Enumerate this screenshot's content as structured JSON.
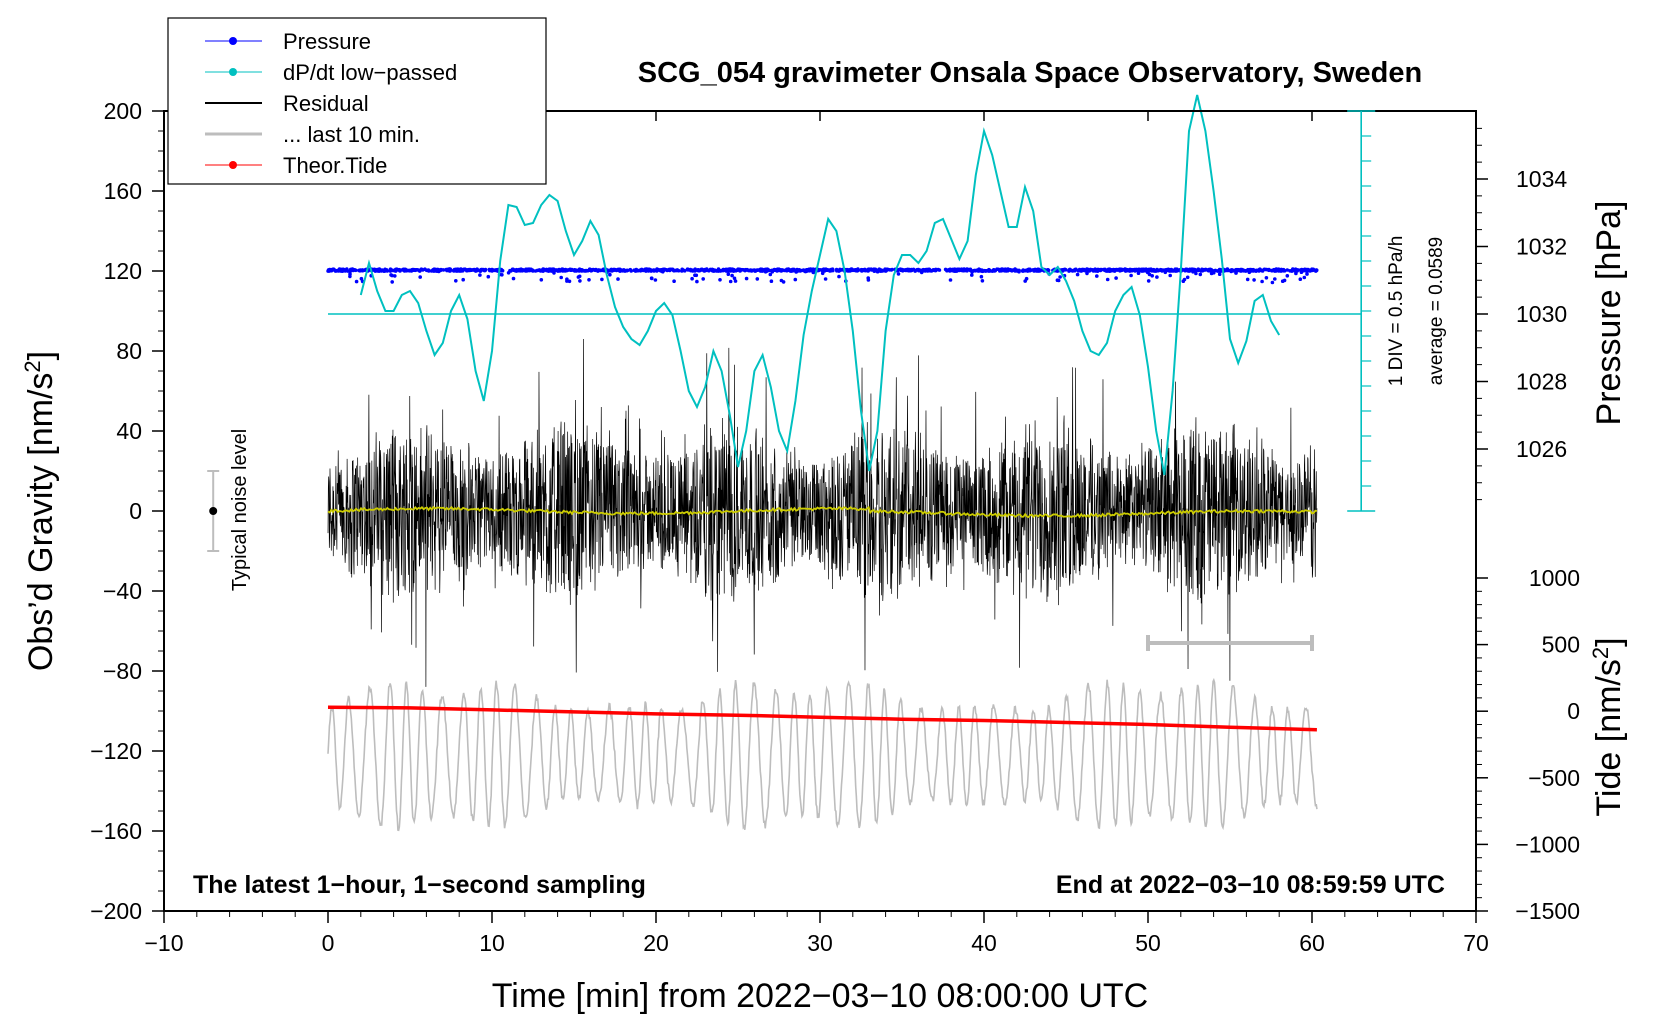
{
  "chart_data": {
    "type": "line",
    "title": "SCG_054 gravimeter Onsala Space Observatory, Sweden",
    "xlabel": "Time [min] from 2022−03−10 08:00:00 UTC",
    "ylabel": "Obs’d Gravity [nm/s",
    "ylabel_sup": "2",
    "ylabel_close": "]",
    "y2label_pressure": "Pressure [hPa]",
    "y2label_tide": "Tide [nm/s",
    "y2label_tide_sup": "2",
    "y2label_tide_close": "]",
    "xlim": [
      -10,
      70
    ],
    "ylim": [
      -200,
      200
    ],
    "pressure_lim": [
      1024,
      1036
    ],
    "tide_lim": [
      -1500,
      1500
    ],
    "x_ticks": [
      {
        "v": -10,
        "label": "−10"
      },
      {
        "v": 0,
        "label": "0"
      },
      {
        "v": 10,
        "label": "10"
      },
      {
        "v": 20,
        "label": "20"
      },
      {
        "v": 30,
        "label": "30"
      },
      {
        "v": 40,
        "label": "40"
      },
      {
        "v": 50,
        "label": "50"
      },
      {
        "v": 60,
        "label": "60"
      },
      {
        "v": 70,
        "label": "70"
      }
    ],
    "y_ticks": [
      {
        "v": 200,
        "label": "200"
      },
      {
        "v": 160,
        "label": "160"
      },
      {
        "v": 120,
        "label": "120"
      },
      {
        "v": 80,
        "label": "80"
      },
      {
        "v": 40,
        "label": "40"
      },
      {
        "v": 0,
        "label": "0"
      },
      {
        "v": -40,
        "label": "−40"
      },
      {
        "v": -80,
        "label": "−80"
      },
      {
        "v": -120,
        "label": "−120"
      },
      {
        "v": -160,
        "label": "−160"
      },
      {
        "v": -200,
        "label": "−200"
      }
    ],
    "pressure_ticks": [
      {
        "v": 1034,
        "label": "1034"
      },
      {
        "v": 1032,
        "label": "1032"
      },
      {
        "v": 1030,
        "label": "1030"
      },
      {
        "v": 1028,
        "label": "1028"
      },
      {
        "v": 1026,
        "label": "1026"
      }
    ],
    "tide_ticks": [
      {
        "v": 1000,
        "label": "1000"
      },
      {
        "v": 500,
        "label": "500"
      },
      {
        "v": 0,
        "label": "0"
      },
      {
        "v": -500,
        "label": "−500"
      },
      {
        "v": -1000,
        "label": "−1000"
      },
      {
        "v": -1500,
        "label": "−1500"
      }
    ],
    "series": [
      {
        "name": "Pressure",
        "color": "#0000ff",
        "axis": "pressure",
        "x_range": [
          0,
          60.3
        ],
        "mean_hPa": 1031.3,
        "note": "dense 1-second dots near 1031.3 hPa"
      },
      {
        "name": "dP/dt low−passed",
        "color": "#00c0c0",
        "axis": "dPdt",
        "baseline_hPa": 1030,
        "scale": "1 DIV = 0.5 hPa/h",
        "x": [
          2.0,
          2.5,
          3.0,
          3.5,
          4.0,
          4.5,
          5.0,
          5.5,
          6.0,
          6.5,
          7.0,
          7.5,
          8.0,
          8.5,
          9.0,
          9.5,
          10.0,
          10.5,
          11.0,
          11.5,
          12.0,
          12.5,
          13.0,
          13.5,
          14.0,
          14.5,
          15.0,
          15.5,
          16.0,
          16.5,
          17.0,
          17.5,
          18.0,
          18.5,
          19.0,
          19.5,
          20.0,
          20.5,
          21.0,
          21.5,
          22.0,
          22.5,
          23.0,
          23.5,
          24.0,
          24.5,
          25.0,
          25.5,
          26.0,
          26.5,
          27.0,
          27.5,
          28.0,
          28.5,
          29.0,
          29.5,
          30.0,
          30.5,
          31.0,
          31.5,
          32.0,
          32.5,
          33.0,
          33.5,
          34.0,
          34.5,
          35.0,
          35.5,
          36.0,
          36.5,
          37.0,
          37.5,
          38.0,
          38.5,
          39.0,
          39.5,
          40.0,
          40.5,
          41.0,
          41.5,
          42.0,
          42.5,
          43.0,
          43.5,
          44.0,
          44.5,
          45.0,
          45.5,
          46.0,
          46.5,
          47.0,
          47.5,
          48.0,
          48.5,
          49.0,
          49.5,
          50.0,
          50.5,
          51.0,
          51.5,
          52.0,
          52.5,
          53.0,
          53.5,
          54.0,
          54.5,
          55.0,
          55.5,
          56.0,
          56.5,
          57.0,
          57.5,
          58.0
        ],
        "y": [
          108,
          124,
          110,
          100,
          100,
          108,
          110,
          104,
          90,
          78,
          84,
          100,
          108,
          96,
          70,
          55,
          80,
          125,
          153,
          152,
          143,
          144,
          153,
          158,
          155,
          140,
          128,
          135,
          145,
          138,
          118,
          102,
          92,
          86,
          83,
          90,
          100,
          104,
          98,
          80,
          60,
          52,
          62,
          80,
          70,
          48,
          22,
          40,
          70,
          78,
          62,
          40,
          30,
          55,
          88,
          110,
          128,
          146,
          140,
          120,
          90,
          50,
          20,
          40,
          90,
          118,
          128,
          128,
          124,
          130,
          144,
          146,
          136,
          126,
          135,
          168,
          190,
          178,
          160,
          142,
          142,
          162,
          150,
          122,
          118,
          122,
          115,
          105,
          90,
          80,
          78,
          84,
          100,
          108,
          112,
          98,
          72,
          40,
          18,
          60,
          120,
          190,
          208,
          190,
          160,
          126,
          86,
          74,
          85,
          105,
          108,
          95,
          88
        ]
      },
      {
        "name": "Residual",
        "color": "#000000",
        "axis": "gravity",
        "x_range": [
          0,
          60.3
        ],
        "amplitude": 70,
        "note": "dense high-frequency trace centred on 0"
      },
      {
        "name": "... last 10 min.",
        "color": "#bdbdbd",
        "axis": "gravity",
        "x_range": [
          0,
          60.3
        ],
        "offset": -120,
        "note": "last 10 minutes re-plotted as grey trace"
      },
      {
        "name": "Theor.Tide",
        "color": "#ff0000",
        "axis": "tide",
        "x": [
          0,
          5,
          10,
          15,
          20,
          25,
          30,
          35,
          40,
          45,
          50,
          55,
          60.3
        ],
        "y": [
          30,
          25,
          10,
          -5,
          -20,
          -30,
          -45,
          -60,
          -70,
          -85,
          -100,
          -120,
          -140
        ]
      }
    ],
    "mean_trend": {
      "name": "running mean",
      "color": "#cccc00",
      "y_range_nm_s2": [
        -3,
        3
      ]
    },
    "noise_level": {
      "label": "Typical noise level",
      "x": -7,
      "y": 0,
      "error": 20
    },
    "last10_bar": {
      "x_start": 50,
      "x_end": 60,
      "y_nm_s2": -66
    },
    "dpdt_note": "1 DIV = 0.5 hPa/h",
    "average_note": "average = 0.0589",
    "note_left": "The latest 1−hour, 1−second sampling",
    "note_right": "End at 2022−03−10 08:59:59 UTC",
    "legend": [
      {
        "label": "Pressure",
        "color": "#0000ff",
        "marker": true,
        "width": 1
      },
      {
        "label": "dP/dt low−passed",
        "color": "#00c0c0",
        "marker": true,
        "width": 1
      },
      {
        "label": "Residual",
        "color": "#000000",
        "marker": false,
        "width": 2
      },
      {
        "label": "... last 10 min.",
        "color": "#bdbdbd",
        "marker": false,
        "width": 3
      },
      {
        "label": "Theor.Tide",
        "color": "#ff0000",
        "marker": true,
        "width": 1
      }
    ]
  }
}
